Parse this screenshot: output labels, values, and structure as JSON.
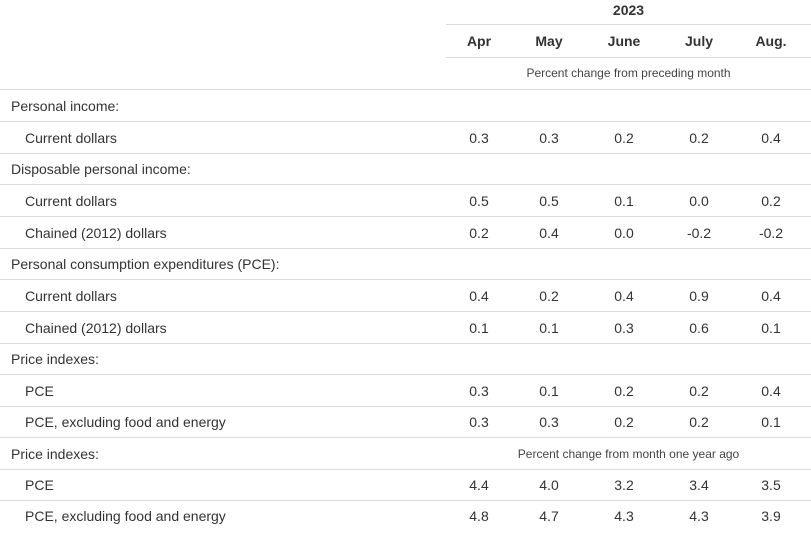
{
  "table": {
    "year": "2023",
    "months": [
      "Apr",
      "May",
      "June",
      "July",
      "Aug."
    ],
    "unit_note_1": "Percent change from preceding month",
    "unit_note_2": "Percent change from month one year ago",
    "rows": [
      {
        "kind": "section",
        "label": "Personal income:"
      },
      {
        "kind": "sub",
        "label": "Current dollars",
        "values": [
          "0.3",
          "0.3",
          "0.2",
          "0.2",
          "0.4"
        ]
      },
      {
        "kind": "section",
        "label": "Disposable personal income:"
      },
      {
        "kind": "sub",
        "label": "Current dollars",
        "values": [
          "0.5",
          "0.5",
          "0.1",
          "0.0",
          "0.2"
        ]
      },
      {
        "kind": "sub",
        "label": "Chained (2012) dollars",
        "values": [
          "0.2",
          "0.4",
          "0.0",
          "-0.2",
          "-0.2"
        ]
      },
      {
        "kind": "section",
        "label": "Personal consumption expenditures (PCE):"
      },
      {
        "kind": "sub",
        "label": "Current dollars",
        "values": [
          "0.4",
          "0.2",
          "0.4",
          "0.9",
          "0.4"
        ]
      },
      {
        "kind": "sub",
        "label": "Chained (2012) dollars",
        "values": [
          "0.1",
          "0.1",
          "0.3",
          "0.6",
          "0.1"
        ]
      },
      {
        "kind": "section",
        "label": "Price indexes:"
      },
      {
        "kind": "sub",
        "label": "PCE",
        "values": [
          "0.3",
          "0.1",
          "0.2",
          "0.2",
          "0.4"
        ]
      },
      {
        "kind": "sub",
        "label": "PCE, excluding food and energy",
        "values": [
          "0.3",
          "0.3",
          "0.2",
          "0.2",
          "0.1"
        ]
      },
      {
        "kind": "section",
        "label": "Price indexes:",
        "band": "unit_note_2"
      },
      {
        "kind": "sub",
        "label": "PCE",
        "values": [
          "4.4",
          "4.0",
          "3.2",
          "3.4",
          "3.5"
        ]
      },
      {
        "kind": "sub",
        "label": "PCE, excluding food and energy",
        "values": [
          "4.8",
          "4.7",
          "4.3",
          "4.3",
          "3.9"
        ]
      }
    ]
  }
}
